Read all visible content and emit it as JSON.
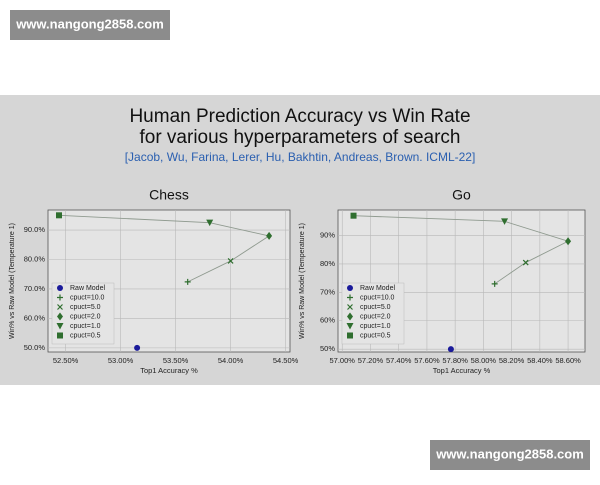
{
  "watermarks": [
    "www.nangong2858.com",
    "www.nangong2858.com"
  ],
  "slide": {
    "title_lines": [
      "Human Prediction Accuracy vs Win Rate",
      "for various hyperparameters of search"
    ],
    "citation": "[Jacob, Wu, Farina, Lerer, Hu, Bakhtin, Andreas, Brown. ICML-22]"
  },
  "chart_data": [
    {
      "type": "scatter",
      "title": "Chess",
      "x_label": "Top1 Accuracy %",
      "y_label": "Win% vs Raw Model (Temperature 1)",
      "xlim": [
        52.34,
        54.54
      ],
      "ylim": [
        48.6,
        96.8
      ],
      "grid": true,
      "legend": "lower left",
      "connect_line_color": "#8f9a8f",
      "xticks": [
        {
          "value": 52.5,
          "label": "52.50%"
        },
        {
          "value": 53,
          "label": "53.00%"
        },
        {
          "value": 53.5,
          "label": "53.50%"
        },
        {
          "value": 54,
          "label": "54.00%"
        },
        {
          "value": 54.5,
          "label": "54.50%"
        }
      ],
      "yticks": [
        {
          "value": 50,
          "label": "50.0%"
        },
        {
          "value": 60,
          "label": "60.0%"
        },
        {
          "value": 70,
          "label": "70.0%"
        },
        {
          "value": 80,
          "label": "80.0%"
        },
        {
          "value": 90,
          "label": "90.0%"
        }
      ],
      "series": [
        {
          "name": "Raw Model",
          "color": "#1a1a9a",
          "marker": "o",
          "connected": false,
          "x": [
            53.15
          ],
          "values": [
            50
          ]
        },
        {
          "name": "cpuct=10.0",
          "color": "#2f6e2f",
          "marker": "+",
          "connected": true,
          "x": [
            53.61
          ],
          "values": [
            72.4
          ]
        },
        {
          "name": "cpuct=5.0",
          "color": "#2f6e2f",
          "marker": "x",
          "connected": true,
          "x": [
            54.0
          ],
          "values": [
            79.5
          ]
        },
        {
          "name": "cpuct=2.0",
          "color": "#2f6e2f",
          "marker": "D",
          "connected": true,
          "x": [
            54.35
          ],
          "values": [
            88
          ]
        },
        {
          "name": "cpuct=1.0",
          "color": "#2f6e2f",
          "marker": "v",
          "connected": true,
          "x": [
            53.81
          ],
          "values": [
            92.5
          ]
        },
        {
          "name": "cpuct=0.5",
          "color": "#2f6e2f",
          "marker": "s",
          "connected": true,
          "x": [
            52.44
          ],
          "values": [
            95
          ]
        }
      ]
    },
    {
      "type": "scatter",
      "title": "Go",
      "x_label": "Top1 Accuracy %",
      "y_label": "Win% vs Raw Model (Temperature 1)",
      "xlim": [
        56.97,
        58.72
      ],
      "ylim": [
        49,
        99
      ],
      "grid": true,
      "legend": "lower left",
      "connect_line_color": "#8f9a8f",
      "xticks": [
        {
          "value": 57,
          "label": "57.00%"
        },
        {
          "value": 57.2,
          "label": "57.20%"
        },
        {
          "value": 57.4,
          "label": "57.40%"
        },
        {
          "value": 57.6,
          "label": "57.60%"
        },
        {
          "value": 57.8,
          "label": "57.80%"
        },
        {
          "value": 58,
          "label": "58.00%"
        },
        {
          "value": 58.2,
          "label": "58.20%"
        },
        {
          "value": 58.4,
          "label": "58.40%"
        },
        {
          "value": 58.6,
          "label": "58.60%"
        }
      ],
      "yticks": [
        {
          "value": 50,
          "label": "50%"
        },
        {
          "value": 60,
          "label": "60%"
        },
        {
          "value": 70,
          "label": "70%"
        },
        {
          "value": 80,
          "label": "80%"
        },
        {
          "value": 90,
          "label": "90%"
        }
      ],
      "series": [
        {
          "name": "Raw Model",
          "color": "#1a1a9a",
          "marker": "o",
          "connected": false,
          "x": [
            57.77
          ],
          "values": [
            50
          ]
        },
        {
          "name": "cpuct=10.0",
          "color": "#2f6e2f",
          "marker": "+",
          "connected": true,
          "x": [
            58.08
          ],
          "values": [
            73
          ]
        },
        {
          "name": "cpuct=5.0",
          "color": "#2f6e2f",
          "marker": "x",
          "connected": true,
          "x": [
            58.3
          ],
          "values": [
            80.5
          ]
        },
        {
          "name": "cpuct=2.0",
          "color": "#2f6e2f",
          "marker": "D",
          "connected": true,
          "x": [
            58.6
          ],
          "values": [
            88
          ]
        },
        {
          "name": "cpuct=1.0",
          "color": "#2f6e2f",
          "marker": "v",
          "connected": true,
          "x": [
            58.15
          ],
          "values": [
            95
          ]
        },
        {
          "name": "cpuct=0.5",
          "color": "#2f6e2f",
          "marker": "s",
          "connected": true,
          "x": [
            57.08
          ],
          "values": [
            97
          ]
        }
      ]
    }
  ]
}
